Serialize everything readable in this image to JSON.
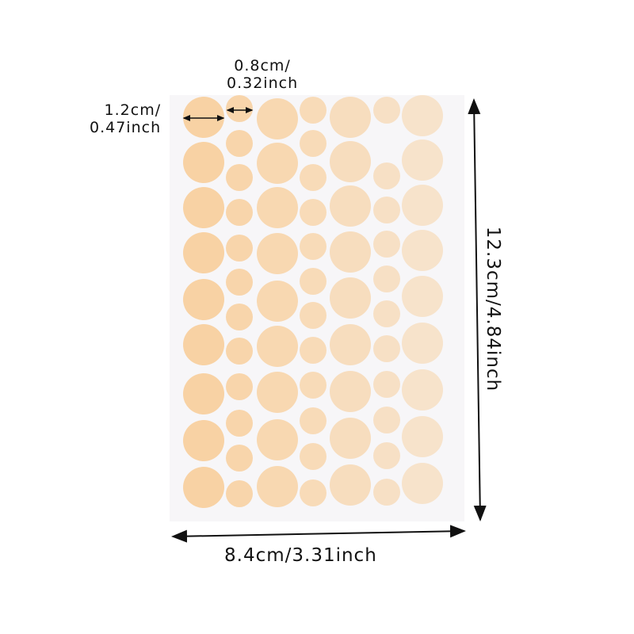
{
  "product": "round skin-tone sticker sheet",
  "dimensions": {
    "large_dot": "1.2cm/\n0.47inch",
    "small_dot": "0.8cm/\n0.32inch",
    "height": "12.3cm/4.84inch",
    "width": "8.4cm/3.31inch"
  },
  "colors": {
    "dot_left": "#F8D2A4",
    "dot_right": "#F7E3CB",
    "sheet": "#F7F6F8",
    "arrow": "#111111"
  }
}
